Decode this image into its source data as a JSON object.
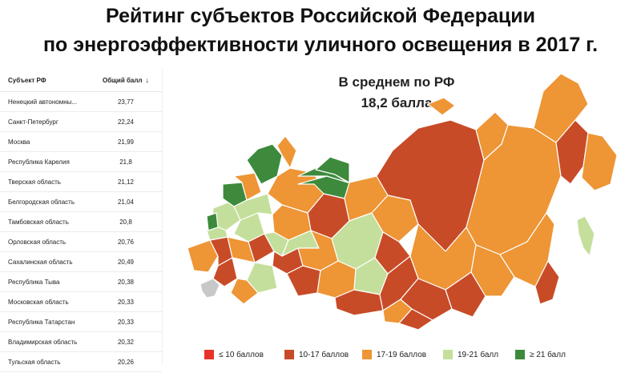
{
  "title": {
    "line1": "Рейтинг субъектов Российской Федерации",
    "line2": "по энергоэффективности уличного освещения в 2017 г."
  },
  "table": {
    "columns": [
      "Субъект РФ",
      "Общий балл"
    ],
    "sort_icon": "arrow-down-icon",
    "rows": [
      {
        "name": "Ненецкий автономны...",
        "score": "23,77"
      },
      {
        "name": "Санкт-Петербург",
        "score": "22,24"
      },
      {
        "name": "Москва",
        "score": "21,99"
      },
      {
        "name": "Республика Карелия",
        "score": "21,8"
      },
      {
        "name": "Тверская область",
        "score": "21,12"
      },
      {
        "name": "Белгородская область",
        "score": "21,04"
      },
      {
        "name": "Тамбовская область",
        "score": "20,8"
      },
      {
        "name": "Орловская область",
        "score": "20,76"
      },
      {
        "name": "Сахалинская область",
        "score": "20,49"
      },
      {
        "name": "Республика Тыва",
        "score": "20,38"
      },
      {
        "name": "Московская область",
        "score": "20,33"
      },
      {
        "name": "Республика Татарстан",
        "score": "20,33"
      },
      {
        "name": "Владимирская область",
        "score": "20,32"
      },
      {
        "name": "Тульская область",
        "score": "20,26"
      }
    ]
  },
  "average": {
    "line1": "В среднем по РФ",
    "line2": "18,2 балла"
  },
  "legend": [
    {
      "label": "≤ 10 баллов",
      "color": "#e8332b"
    },
    {
      "label": "10-17 баллов",
      "color": "#c84b28"
    },
    {
      "label": "17-19 баллов",
      "color": "#ee9535"
    },
    {
      "label": "19-21 балл",
      "color": "#c4df9b"
    },
    {
      "label": "≥ 21 балл",
      "color": "#3d8a3d"
    }
  ],
  "colors": {
    "nodata": "#c8c8c8",
    "border": "#ffffff"
  }
}
